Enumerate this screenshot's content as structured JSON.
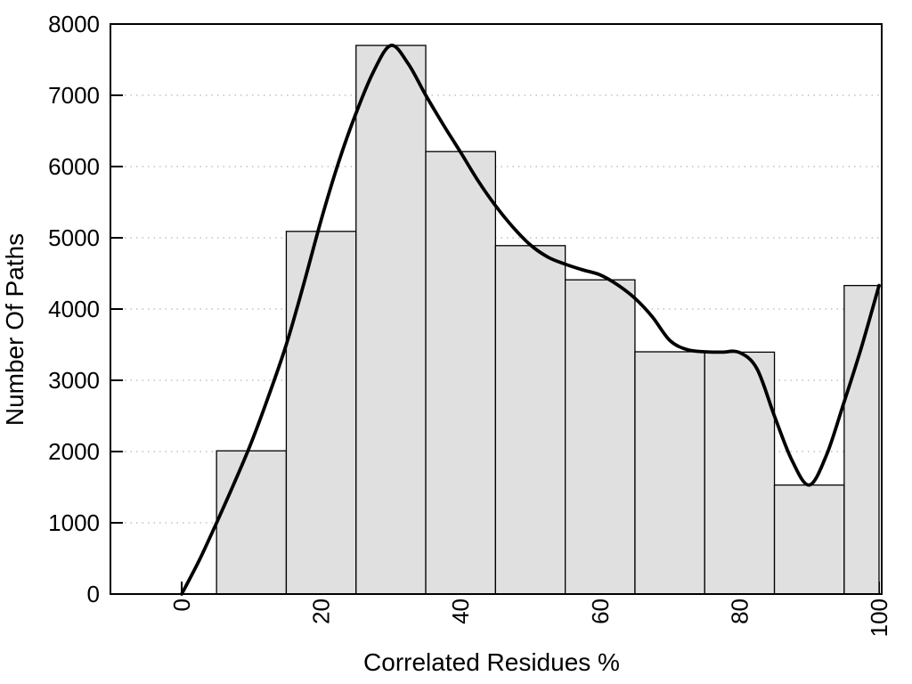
{
  "chart_data": {
    "type": "bar",
    "subtype": "histogram-with-smooth-curve",
    "title": "",
    "xlabel": "Correlated Residues %",
    "ylabel": "Number Of Paths",
    "xlim": [
      -10.2,
      100.3
    ],
    "ylim": [
      0,
      8000
    ],
    "x_ticks": [
      0,
      20,
      40,
      60,
      80,
      100
    ],
    "y_ticks": [
      0,
      1000,
      2000,
      3000,
      4000,
      5000,
      6000,
      7000,
      8000
    ],
    "grid": "horizontal-dotted",
    "legend": "none",
    "bars": [
      {
        "x_start": 5,
        "x_end": 15,
        "count": 2010
      },
      {
        "x_start": 15,
        "x_end": 25,
        "count": 5090
      },
      {
        "x_start": 25,
        "x_end": 35,
        "count": 7700
      },
      {
        "x_start": 35,
        "x_end": 45,
        "count": 6210
      },
      {
        "x_start": 45,
        "x_end": 55,
        "count": 4890
      },
      {
        "x_start": 55,
        "x_end": 65,
        "count": 4410
      },
      {
        "x_start": 65,
        "x_end": 75,
        "count": 3400
      },
      {
        "x_start": 75,
        "x_end": 85,
        "count": 3395
      },
      {
        "x_start": 85,
        "x_end": 95,
        "count": 1530
      },
      {
        "x_start": 95,
        "x_end": 100,
        "count": 4330
      }
    ],
    "curve_points": [
      [
        0,
        0
      ],
      [
        2.5,
        470
      ],
      [
        5,
        1000
      ],
      [
        7.5,
        1550
      ],
      [
        10,
        2130
      ],
      [
        12.5,
        2790
      ],
      [
        15,
        3500
      ],
      [
        17.5,
        4350
      ],
      [
        20,
        5250
      ],
      [
        22.5,
        6060
      ],
      [
        25,
        6750
      ],
      [
        27.5,
        7330
      ],
      [
        30,
        7700
      ],
      [
        32.5,
        7440
      ],
      [
        35,
        7000
      ],
      [
        37.5,
        6590
      ],
      [
        40,
        6200
      ],
      [
        42.5,
        5800
      ],
      [
        45,
        5450
      ],
      [
        47.5,
        5150
      ],
      [
        50,
        4900
      ],
      [
        52.5,
        4730
      ],
      [
        55,
        4630
      ],
      [
        57.5,
        4550
      ],
      [
        60,
        4480
      ],
      [
        62.5,
        4340
      ],
      [
        65,
        4150
      ],
      [
        67.5,
        3890
      ],
      [
        70,
        3560
      ],
      [
        72.5,
        3430
      ],
      [
        75,
        3400
      ],
      [
        77.5,
        3395
      ],
      [
        80,
        3390
      ],
      [
        82.5,
        3160
      ],
      [
        85,
        2500
      ],
      [
        87.5,
        1880
      ],
      [
        90,
        1530
      ],
      [
        92.5,
        1960
      ],
      [
        95,
        2700
      ],
      [
        97.5,
        3470
      ],
      [
        100,
        4330
      ]
    ],
    "colors": {
      "background": "#ffffff",
      "bar_fill": "#e0e0e0",
      "bar_stroke": "#000000",
      "curve": "#000000",
      "grid": "#b5b5b5",
      "axis": "#000000",
      "text": "#000000"
    }
  }
}
